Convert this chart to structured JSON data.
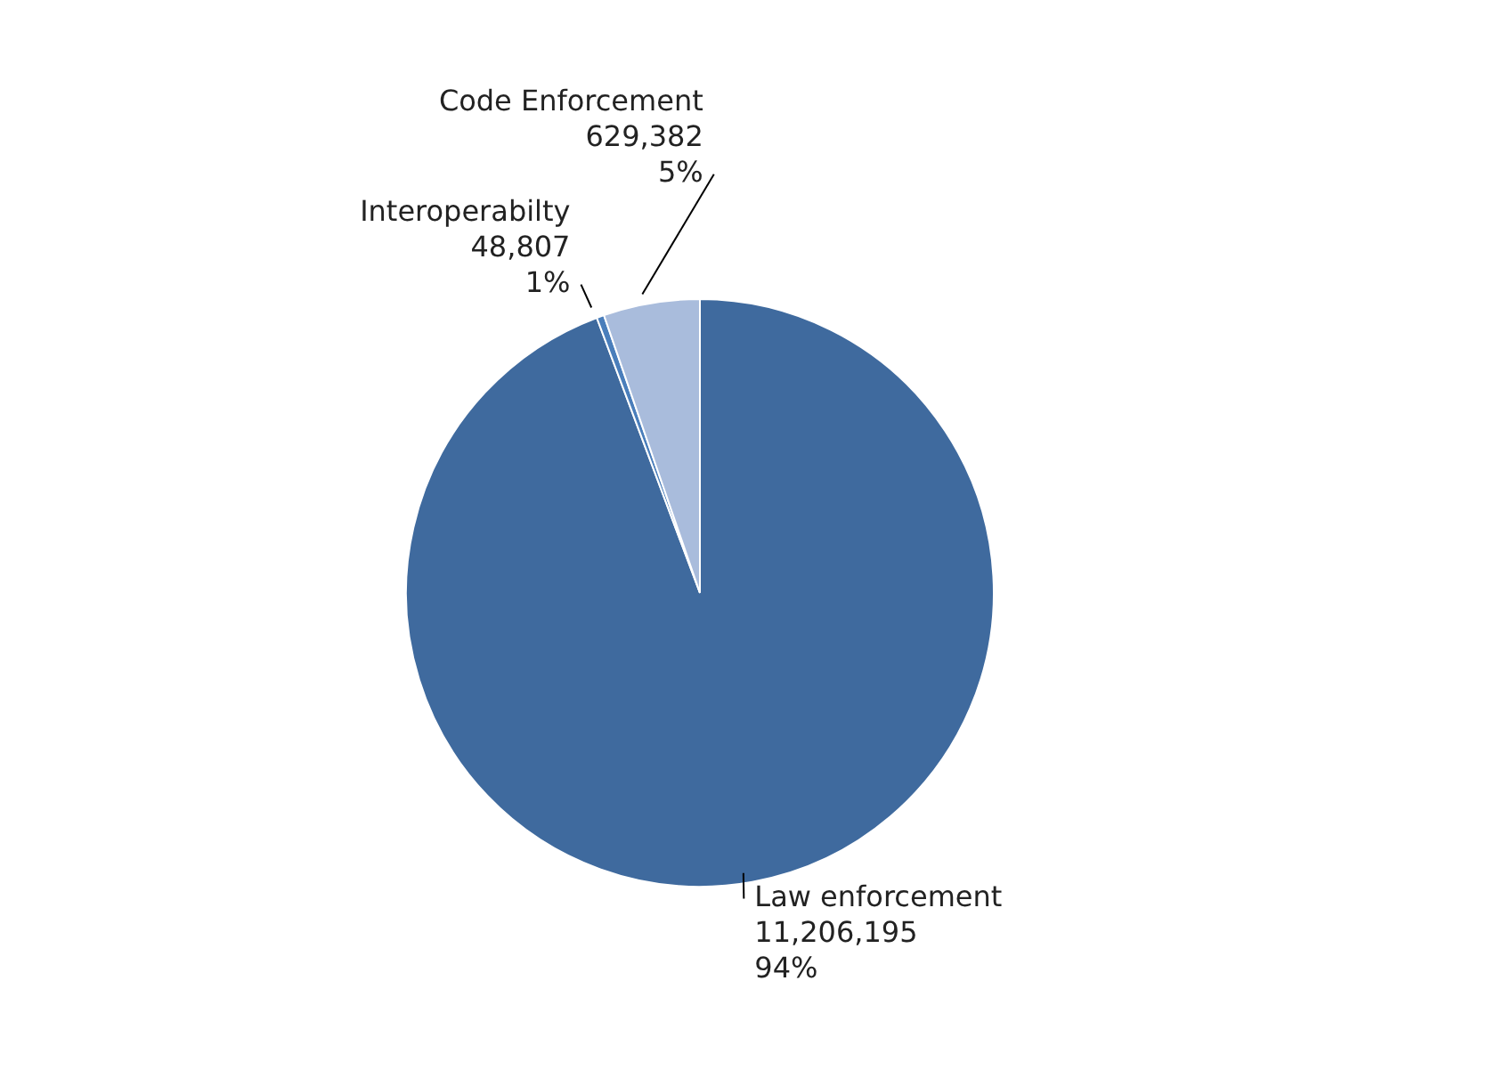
{
  "chart_data": {
    "type": "pie",
    "categories": [
      "Law enforcement",
      "Interoperabilty",
      "Code Enforcement"
    ],
    "values": [
      11206195,
      48807,
      629382
    ],
    "colors": [
      "#3f6a9e",
      "#4a7ebb",
      "#a9bcdc"
    ],
    "value_labels": [
      "11,206,195\n94%",
      "48,807\n1%",
      "629,382\n5%"
    ],
    "legend": false
  }
}
